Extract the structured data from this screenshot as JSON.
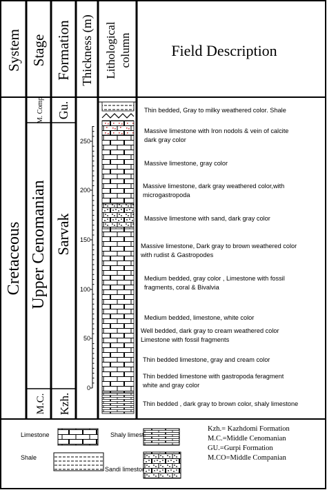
{
  "headers": {
    "system": "System",
    "stage": "Stage",
    "formation": "Formation",
    "thickness": "Thickness (m)",
    "lith_line1": "Lithological",
    "lith_line2": "column",
    "description": "Field Description"
  },
  "system_value": "Cretaceous",
  "stages": {
    "mcomp": "M. Comp",
    "upper": "Upper Cenomanian",
    "mc": "M.C."
  },
  "formations": {
    "gu": "Gu.",
    "sarvak": "Sarvak",
    "kzh": "Kzh."
  },
  "ticks": [
    "250",
    "200",
    "150",
    "100",
    "50",
    "0"
  ],
  "descriptions": [
    {
      "lines": [
        "Thin bedded, Gray to milky weathered color. Shale"
      ]
    },
    {
      "lines": [
        "Massive limestone with Iron nodols & vein of calcite",
        "dark gray color"
      ]
    },
    {
      "lines": [
        "Massive limestone, gray color"
      ]
    },
    {
      "lines": [
        "Massive limestone, dark gray weathered color,with",
        "microgastropoda"
      ]
    },
    {
      "lines": [
        "Massive limestone with sand, dark gray color"
      ]
    },
    {
      "lines": [
        "Massive limestone, Dark gray to brown weathered color",
        "with rudist & Gastropodes"
      ]
    },
    {
      "lines": [
        "Medium bedded, gray color , Limestone with fossil",
        "fragments, coral & Bivalvia"
      ]
    },
    {
      "lines": [
        "Medium bedded, limestone, white color"
      ]
    },
    {
      "lines": [
        "Well bedded,  dark gray to cream weathered color",
        "Limestone with fossil  fragments"
      ]
    },
    {
      "lines": [
        "Thin bedded limestone, gray and cream color"
      ]
    },
    {
      "lines": [
        "Thin bedded limestone with gastropoda feragment",
        "white and gray color"
      ]
    },
    {
      "lines": [
        "Thin bedded  ,  dark gray to brown color, shaly limestone"
      ]
    }
  ],
  "legend": {
    "limestone": "Limestone",
    "shale": "Shale",
    "shaly_limestone": "Shaly limestone",
    "sandi_limestone": "Sandi limestone",
    "abbr": [
      "Kzh.= Kazhdomi Formation",
      "M.C.=Middle Cenomanian",
      "GU.=Gurpi Formation",
      "M.CO=Middle Companian"
    ]
  },
  "colors": {
    "line": "#000000",
    "nodule": "#cc3333"
  }
}
